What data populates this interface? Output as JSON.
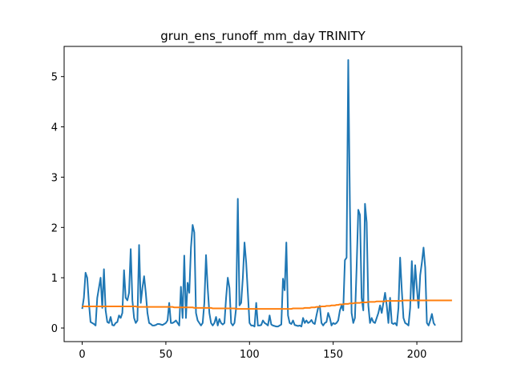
{
  "chart_data": {
    "type": "line",
    "title": "grun_ens_runoff_mm_day TRINITY",
    "xlabel": "",
    "ylabel": "",
    "xlim": [
      -10.8,
      226.8
    ],
    "ylim": [
      -0.27,
      5.6
    ],
    "xticks": [
      0,
      50,
      100,
      150,
      200
    ],
    "yticks": [
      0,
      1,
      2,
      3,
      4,
      5
    ],
    "grid": false,
    "colors": {
      "series1": "#1f77b4",
      "series2": "#ff7f0e"
    },
    "series": [
      {
        "values": [
          0.38,
          0.6,
          1.1,
          1.0,
          0.5,
          0.12,
          0.1,
          0.08,
          0.05,
          0.6,
          0.8,
          1.0,
          0.4,
          1.17,
          0.35,
          0.12,
          0.1,
          0.22,
          0.06,
          0.05,
          0.1,
          0.12,
          0.25,
          0.2,
          0.3,
          1.15,
          0.6,
          0.55,
          0.7,
          1.57,
          0.55,
          0.2,
          0.1,
          0.15,
          1.65,
          0.5,
          0.8,
          1.03,
          0.7,
          0.3,
          0.1,
          0.08,
          0.05,
          0.05,
          0.06,
          0.08,
          0.08,
          0.07,
          0.06,
          0.08,
          0.1,
          0.15,
          0.5,
          0.1,
          0.1,
          0.12,
          0.15,
          0.1,
          0.05,
          0.82,
          0.2,
          1.44,
          0.2,
          0.9,
          0.7,
          1.6,
          2.05,
          1.9,
          0.3,
          0.15,
          0.1,
          0.05,
          0.1,
          0.5,
          1.45,
          0.8,
          0.3,
          0.1,
          0.05,
          0.1,
          0.22,
          0.05,
          0.18,
          0.1,
          0.07,
          0.1,
          0.6,
          1.0,
          0.8,
          0.1,
          0.05,
          0.1,
          0.4,
          2.57,
          0.45,
          0.5,
          1.0,
          1.7,
          1.3,
          0.7,
          0.1,
          0.05,
          0.05,
          0.03,
          0.5,
          0.05,
          0.05,
          0.06,
          0.15,
          0.1,
          0.08,
          0.05,
          0.25,
          0.07,
          0.05,
          0.04,
          0.03,
          0.03,
          0.05,
          0.07,
          0.98,
          0.75,
          1.7,
          0.25,
          0.1,
          0.08,
          0.15,
          0.06,
          0.05,
          0.04,
          0.05,
          0.03,
          0.2,
          0.1,
          0.15,
          0.1,
          0.12,
          0.16,
          0.1,
          0.08,
          0.25,
          0.4,
          0.44,
          0.1,
          0.05,
          0.1,
          0.12,
          0.3,
          0.2,
          0.05,
          0.1,
          0.08,
          0.1,
          0.15,
          0.35,
          0.45,
          0.35,
          1.35,
          1.4,
          5.33,
          2.4,
          0.3,
          0.1,
          0.2,
          1.2,
          2.35,
          2.25,
          0.6,
          0.35,
          2.47,
          2.1,
          0.45,
          0.1,
          0.2,
          0.12,
          0.1,
          0.2,
          0.3,
          0.45,
          0.3,
          0.5,
          0.7,
          0.45,
          0.1,
          0.6,
          0.1,
          0.08,
          0.1,
          0.05,
          0.4,
          1.4,
          0.75,
          0.2,
          0.1,
          0.08,
          0.05,
          0.4,
          1.33,
          0.55,
          1.25,
          0.8,
          0.4,
          1.05,
          1.3,
          1.6,
          1.2,
          0.1,
          0.05,
          0.15,
          0.28,
          0.1,
          0.05
        ]
      },
      {
        "values": [
          0.43,
          0.43,
          0.43,
          0.43,
          0.43,
          0.43,
          0.43,
          0.43,
          0.43,
          0.43,
          0.43,
          0.43,
          0.43,
          0.43,
          0.43,
          0.43,
          0.43,
          0.43,
          0.43,
          0.43,
          0.43,
          0.43,
          0.43,
          0.43,
          0.43,
          0.43,
          0.43,
          0.43,
          0.43,
          0.43,
          0.43,
          0.43,
          0.43,
          0.42,
          0.42,
          0.42,
          0.42,
          0.42,
          0.42,
          0.42,
          0.42,
          0.42,
          0.42,
          0.42,
          0.42,
          0.42,
          0.42,
          0.42,
          0.42,
          0.42,
          0.42,
          0.42,
          0.42,
          0.42,
          0.42,
          0.41,
          0.41,
          0.41,
          0.41,
          0.41,
          0.41,
          0.41,
          0.41,
          0.41,
          0.41,
          0.41,
          0.41,
          0.4,
          0.4,
          0.4,
          0.4,
          0.4,
          0.4,
          0.4,
          0.4,
          0.4,
          0.4,
          0.4,
          0.39,
          0.39,
          0.39,
          0.39,
          0.39,
          0.39,
          0.39,
          0.39,
          0.39,
          0.39,
          0.39,
          0.39,
          0.39,
          0.39,
          0.38,
          0.38,
          0.38,
          0.38,
          0.38,
          0.38,
          0.38,
          0.38,
          0.38,
          0.38,
          0.38,
          0.38,
          0.38,
          0.38,
          0.38,
          0.38,
          0.38,
          0.38,
          0.38,
          0.38,
          0.38,
          0.38,
          0.38,
          0.38,
          0.38,
          0.38,
          0.38,
          0.38,
          0.38,
          0.38,
          0.38,
          0.38,
          0.38,
          0.38,
          0.39,
          0.39,
          0.39,
          0.39,
          0.39,
          0.39,
          0.39,
          0.4,
          0.4,
          0.4,
          0.4,
          0.41,
          0.41,
          0.41,
          0.42,
          0.42,
          0.42,
          0.43,
          0.43,
          0.43,
          0.44,
          0.44,
          0.44,
          0.45,
          0.45,
          0.45,
          0.46,
          0.46,
          0.47,
          0.47,
          0.47,
          0.48,
          0.48,
          0.48,
          0.49,
          0.49,
          0.49,
          0.5,
          0.5,
          0.5,
          0.5,
          0.51,
          0.51,
          0.51,
          0.51,
          0.52,
          0.52,
          0.52,
          0.52,
          0.52,
          0.53,
          0.53,
          0.53,
          0.53,
          0.53,
          0.53,
          0.54,
          0.54,
          0.54,
          0.54,
          0.54,
          0.54,
          0.54,
          0.54,
          0.54,
          0.54,
          0.55,
          0.55,
          0.55,
          0.55,
          0.55,
          0.55,
          0.55,
          0.55,
          0.55,
          0.55,
          0.55,
          0.55,
          0.55,
          0.55,
          0.55,
          0.55,
          0.55,
          0.55,
          0.55,
          0.55,
          0.55,
          0.55,
          0.55,
          0.55,
          0.55,
          0.55,
          0.55,
          0.55,
          0.55,
          0.55
        ]
      }
    ]
  }
}
